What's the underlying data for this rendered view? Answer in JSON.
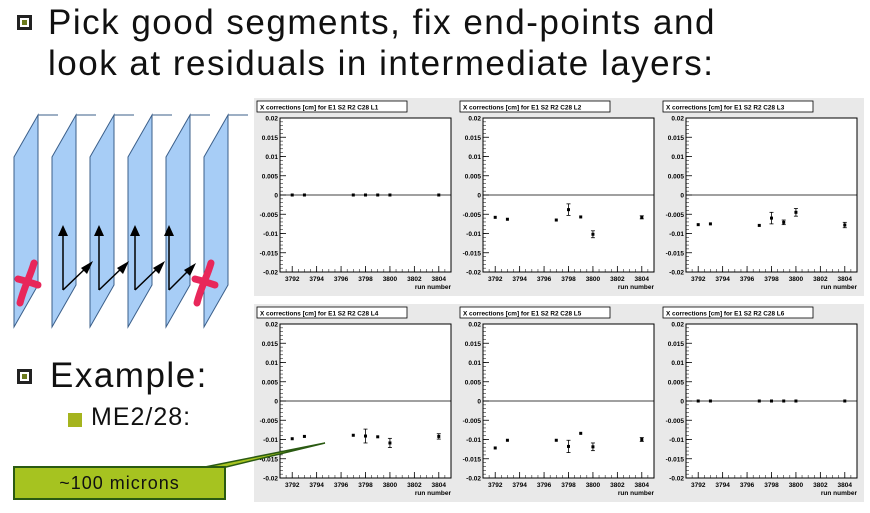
{
  "headline": {
    "line1": "Pick good segments, fix end-points and",
    "line2": "look at residuals in intermediate layers:"
  },
  "example_label": "Example:",
  "chamber_label": "ME2/28:",
  "callout_label": "~100 microns",
  "colors": {
    "plane": "#a7cdf6",
    "plane_edge": "#3b5f8a",
    "hit": "#e8275a",
    "callout": "#a6c320",
    "sub_bullet": "#a5b41e"
  },
  "chart_data": [
    {
      "type": "scatter",
      "title": "X corrections [cm] for E1 S2 R2 C28 L1",
      "xlabel": "run number",
      "xlim": [
        3791,
        3805
      ],
      "ylim": [
        -0.02,
        0.02
      ],
      "xticks": [
        "3792",
        "3794",
        "3796",
        "3798",
        "3800",
        "3802",
        "3804"
      ],
      "yticks": [
        "0.02",
        "0.015",
        "0.01",
        "0.005",
        "0",
        "-0.005",
        "-0.01",
        "-0.015",
        "-0.02"
      ],
      "x": [
        3792,
        3793,
        3797,
        3798,
        3799,
        3800,
        3804
      ],
      "y": [
        0,
        0,
        0,
        0,
        0,
        0,
        0
      ],
      "yerr": [
        0,
        0,
        0,
        0,
        0,
        0,
        0
      ]
    },
    {
      "type": "scatter",
      "title": "X corrections [cm] for E1 S2 R2 C28 L2",
      "xlabel": "run number",
      "xlim": [
        3791,
        3805
      ],
      "ylim": [
        -0.02,
        0.02
      ],
      "xticks": [
        "3792",
        "3794",
        "3796",
        "3798",
        "3800",
        "3802",
        "3804"
      ],
      "yticks": [
        "0.02",
        "0.015",
        "0.01",
        "0.005",
        "0",
        "-0.005",
        "-0.01",
        "-0.015",
        "-0.02"
      ],
      "x": [
        3792,
        3793,
        3797,
        3798,
        3799,
        3800,
        3804
      ],
      "y": [
        -0.0058,
        -0.0063,
        -0.0065,
        -0.0038,
        -0.0057,
        -0.0102,
        -0.0058
      ],
      "yerr": [
        0,
        0,
        0,
        0.0015,
        0,
        0.0009,
        0.0004
      ]
    },
    {
      "type": "scatter",
      "title": "X corrections [cm] for E1 S2 R2 C28 L3",
      "xlabel": "run number",
      "xlim": [
        3791,
        3805
      ],
      "ylim": [
        -0.02,
        0.02
      ],
      "xticks": [
        "3792",
        "3794",
        "3796",
        "3798",
        "3800",
        "3802",
        "3804"
      ],
      "yticks": [
        "0.02",
        "0.015",
        "0.01",
        "0.005",
        "0",
        "-0.005",
        "-0.01",
        "-0.015",
        "-0.02"
      ],
      "x": [
        3792,
        3793,
        3797,
        3798,
        3799,
        3800,
        3804
      ],
      "y": [
        -0.0077,
        -0.0075,
        -0.0079,
        -0.006,
        -0.0071,
        -0.0045,
        -0.0078
      ],
      "yerr": [
        0,
        0,
        0,
        0.0015,
        0.0006,
        0.001,
        0.0007
      ]
    },
    {
      "type": "scatter",
      "title": "X corrections [cm] for E1 S2 R2 C28 L4",
      "xlabel": "run number",
      "xlim": [
        3791,
        3805
      ],
      "ylim": [
        -0.02,
        0.02
      ],
      "xticks": [
        "3792",
        "3794",
        "3796",
        "3798",
        "3800",
        "3802",
        "3804"
      ],
      "yticks": [
        "0.02",
        "0.015",
        "0.01",
        "0.005",
        "0",
        "-0.005",
        "-0.01",
        "-0.015",
        "-0.02"
      ],
      "x": [
        3792,
        3793,
        3797,
        3798,
        3799,
        3800,
        3804
      ],
      "y": [
        -0.0098,
        -0.0092,
        -0.0089,
        -0.0091,
        -0.0093,
        -0.0109,
        -0.0092
      ],
      "yerr": [
        0,
        0,
        0,
        0.0018,
        0,
        0.0012,
        0.0007
      ]
    },
    {
      "type": "scatter",
      "title": "X corrections [cm] for E1 S2 R2 C28 L5",
      "xlabel": "run number",
      "xlim": [
        3791,
        3805
      ],
      "ylim": [
        -0.02,
        0.02
      ],
      "xticks": [
        "3792",
        "3794",
        "3796",
        "3798",
        "3800",
        "3802",
        "3804"
      ],
      "yticks": [
        "0.02",
        "0.015",
        "0.01",
        "0.005",
        "0",
        "-0.005",
        "-0.01",
        "-0.015",
        "-0.02"
      ],
      "x": [
        3792,
        3793,
        3797,
        3798,
        3799,
        3800,
        3804
      ],
      "y": [
        -0.0122,
        -0.0102,
        -0.0102,
        -0.0118,
        -0.0084,
        -0.0119,
        -0.01
      ],
      "yerr": [
        0,
        0,
        0,
        0.0016,
        0,
        0.001,
        0.0005
      ]
    },
    {
      "type": "scatter",
      "title": "X corrections [cm] for E1 S2 R2 C28 L6",
      "xlabel": "run number",
      "xlim": [
        3791,
        3805
      ],
      "ylim": [
        -0.02,
        0.02
      ],
      "xticks": [
        "3792",
        "3794",
        "3796",
        "3798",
        "3800",
        "3802",
        "3804"
      ],
      "yticks": [
        "0.02",
        "0.015",
        "0.01",
        "0.005",
        "0",
        "-0.005",
        "-0.01",
        "-0.015",
        "-0.02"
      ],
      "x": [
        3792,
        3793,
        3797,
        3798,
        3799,
        3800,
        3804
      ],
      "y": [
        0,
        0,
        0,
        0,
        0,
        0,
        0
      ],
      "yerr": [
        0,
        0,
        0,
        0,
        0,
        0,
        0
      ]
    }
  ]
}
